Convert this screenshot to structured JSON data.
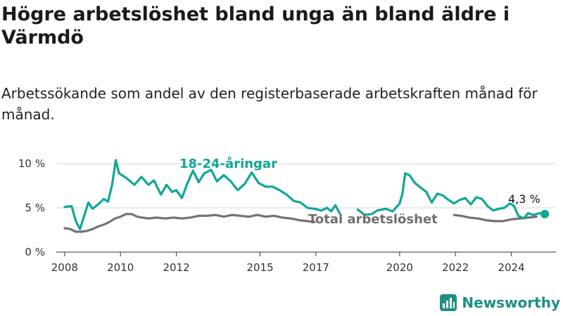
{
  "title": "Högre arbetslöshet bland unga än bland äldre i Värmdö",
  "subtitle": "Arbetssökande som andel av den registerbaserade arbetskraften månad för månad.",
  "brand": "Newsworthy",
  "colors": {
    "youth": "#10a697",
    "total": "#737373",
    "grid": "#d6d6d6",
    "axis": "#333333",
    "brand": "#1f8f84"
  },
  "chart_data": {
    "type": "line",
    "x_unit": "year",
    "xlim": [
      2007.6,
      2025.6
    ],
    "ylim": [
      0,
      11
    ],
    "y_ticks": [
      0,
      5,
      10
    ],
    "y_tick_labels": [
      "0 %",
      "5 %",
      "10 %"
    ],
    "x_ticks": [
      2008,
      2010,
      2012,
      2015,
      2017,
      2020,
      2022,
      2024
    ],
    "grid": true,
    "series": [
      {
        "name": "18-24-åringar",
        "values": [
          [
            2008.0,
            5.1
          ],
          [
            2008.25,
            5.2
          ],
          [
            2008.4,
            3.5
          ],
          [
            2008.55,
            2.6
          ],
          [
            2008.7,
            4.1
          ],
          [
            2008.85,
            5.6
          ],
          [
            2009.0,
            4.9
          ],
          [
            2009.2,
            5.4
          ],
          [
            2009.4,
            6.0
          ],
          [
            2009.55,
            5.7
          ],
          [
            2009.7,
            7.6
          ],
          [
            2009.83,
            10.4
          ],
          [
            2009.95,
            8.9
          ],
          [
            2010.2,
            8.4
          ],
          [
            2010.5,
            7.6
          ],
          [
            2010.75,
            8.5
          ],
          [
            2011.0,
            7.6
          ],
          [
            2011.2,
            8.1
          ],
          [
            2011.45,
            6.5
          ],
          [
            2011.65,
            7.6
          ],
          [
            2011.85,
            6.8
          ],
          [
            2012.0,
            7.0
          ],
          [
            2012.2,
            6.1
          ],
          [
            2012.4,
            7.8
          ],
          [
            2012.6,
            9.2
          ],
          [
            2012.8,
            7.9
          ],
          [
            2013.0,
            8.9
          ],
          [
            2013.25,
            9.3
          ],
          [
            2013.45,
            8.0
          ],
          [
            2013.7,
            8.7
          ],
          [
            2013.95,
            8.0
          ],
          [
            2014.2,
            7.0
          ],
          [
            2014.45,
            7.7
          ],
          [
            2014.7,
            9.0
          ],
          [
            2014.95,
            7.8
          ],
          [
            2015.2,
            7.4
          ],
          [
            2015.45,
            7.4
          ],
          [
            2015.7,
            7.0
          ],
          [
            2015.95,
            6.5
          ],
          [
            2016.2,
            5.8
          ],
          [
            2016.45,
            5.6
          ],
          [
            2016.7,
            5.0
          ],
          [
            2016.95,
            4.9
          ],
          [
            2017.2,
            4.7
          ],
          [
            2017.4,
            5.0
          ],
          [
            2017.55,
            4.6
          ],
          [
            2017.7,
            5.3
          ],
          [
            2017.85,
            4.4
          ],
          [
            2018.5,
            4.8
          ],
          [
            2018.75,
            4.2
          ],
          [
            2019.0,
            4.3
          ],
          [
            2019.2,
            4.7
          ],
          [
            2019.5,
            4.9
          ],
          [
            2019.75,
            4.6
          ],
          [
            2020.0,
            5.5
          ],
          [
            2020.1,
            6.6
          ],
          [
            2020.2,
            8.9
          ],
          [
            2020.35,
            8.7
          ],
          [
            2020.55,
            7.8
          ],
          [
            2020.75,
            7.3
          ],
          [
            2020.95,
            6.8
          ],
          [
            2021.15,
            5.6
          ],
          [
            2021.35,
            6.6
          ],
          [
            2021.55,
            6.4
          ],
          [
            2021.75,
            5.9
          ],
          [
            2021.95,
            5.5
          ],
          [
            2022.15,
            5.9
          ],
          [
            2022.35,
            6.1
          ],
          [
            2022.55,
            5.4
          ],
          [
            2022.75,
            6.2
          ],
          [
            2022.95,
            6.0
          ],
          [
            2023.15,
            5.2
          ],
          [
            2023.35,
            4.7
          ],
          [
            2023.55,
            4.9
          ],
          [
            2023.75,
            5.0
          ],
          [
            2023.95,
            5.5
          ],
          [
            2024.1,
            5.2
          ],
          [
            2024.25,
            4.1
          ],
          [
            2024.45,
            3.8
          ],
          [
            2024.6,
            4.4
          ],
          [
            2024.8,
            4.2
          ],
          [
            2025.0,
            4.4
          ],
          [
            2025.2,
            4.3
          ]
        ]
      },
      {
        "name": "Total arbetslöshet",
        "values": [
          [
            2008.0,
            2.7
          ],
          [
            2008.2,
            2.6
          ],
          [
            2008.4,
            2.3
          ],
          [
            2008.6,
            2.3
          ],
          [
            2008.8,
            2.4
          ],
          [
            2009.0,
            2.6
          ],
          [
            2009.2,
            2.9
          ],
          [
            2009.4,
            3.1
          ],
          [
            2009.6,
            3.4
          ],
          [
            2009.8,
            3.8
          ],
          [
            2010.0,
            4.0
          ],
          [
            2010.2,
            4.3
          ],
          [
            2010.4,
            4.3
          ],
          [
            2010.6,
            4.0
          ],
          [
            2010.8,
            3.9
          ],
          [
            2011.0,
            3.8
          ],
          [
            2011.3,
            3.9
          ],
          [
            2011.6,
            3.8
          ],
          [
            2011.9,
            3.9
          ],
          [
            2012.2,
            3.8
          ],
          [
            2012.5,
            3.9
          ],
          [
            2012.8,
            4.1
          ],
          [
            2013.1,
            4.1
          ],
          [
            2013.4,
            4.2
          ],
          [
            2013.7,
            4.0
          ],
          [
            2014.0,
            4.2
          ],
          [
            2014.3,
            4.1
          ],
          [
            2014.6,
            4.0
          ],
          [
            2014.9,
            4.2
          ],
          [
            2015.2,
            4.0
          ],
          [
            2015.5,
            4.1
          ],
          [
            2015.8,
            3.9
          ],
          [
            2016.1,
            3.8
          ],
          [
            2016.4,
            3.6
          ],
          [
            2016.7,
            3.5
          ],
          [
            2016.95,
            3.4
          ],
          [
            2021.95,
            4.2
          ],
          [
            2022.2,
            4.1
          ],
          [
            2022.5,
            3.9
          ],
          [
            2022.8,
            3.8
          ],
          [
            2023.1,
            3.6
          ],
          [
            2023.4,
            3.5
          ],
          [
            2023.7,
            3.5
          ],
          [
            2024.0,
            3.7
          ],
          [
            2024.3,
            3.8
          ],
          [
            2024.6,
            3.9
          ],
          [
            2024.9,
            4.0
          ]
        ]
      }
    ],
    "last_value_label": "4,3 %"
  }
}
